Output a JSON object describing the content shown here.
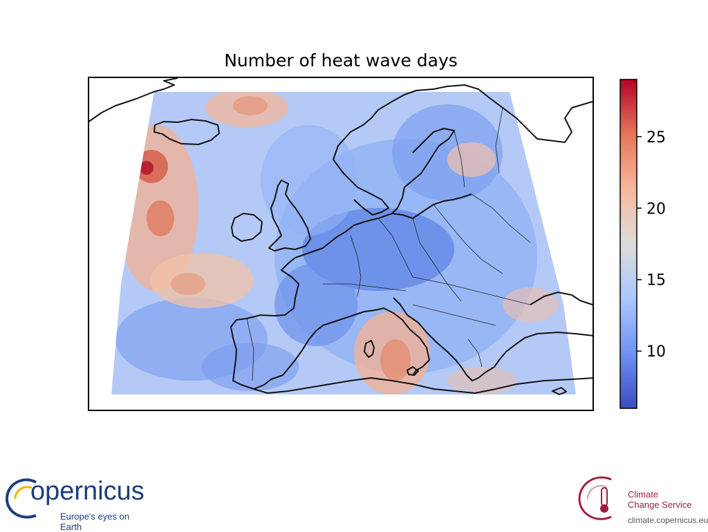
{
  "title": "Number of heat wave days",
  "colorbar": {
    "min": 6,
    "max": 29,
    "ticks": [
      10,
      15,
      20,
      25
    ],
    "colormap": "coolwarm",
    "colors": [
      "#3b4cc0",
      "#6f92f3",
      "#aac7fd",
      "#dddcdc",
      "#f7b89c",
      "#e7745b",
      "#b40426"
    ]
  },
  "map": {
    "region": "Europe",
    "border_color": "#000000"
  },
  "logos": {
    "copernicus": {
      "word": "opernicus",
      "tagline": "Europe's eyes on Earth",
      "color": "#1b3e7d",
      "accent": "#f2b300"
    },
    "c3s": {
      "line1": "Climate",
      "line2": "Change Service",
      "url": "climate.copernicus.eu",
      "color": "#9e1f3f"
    }
  }
}
